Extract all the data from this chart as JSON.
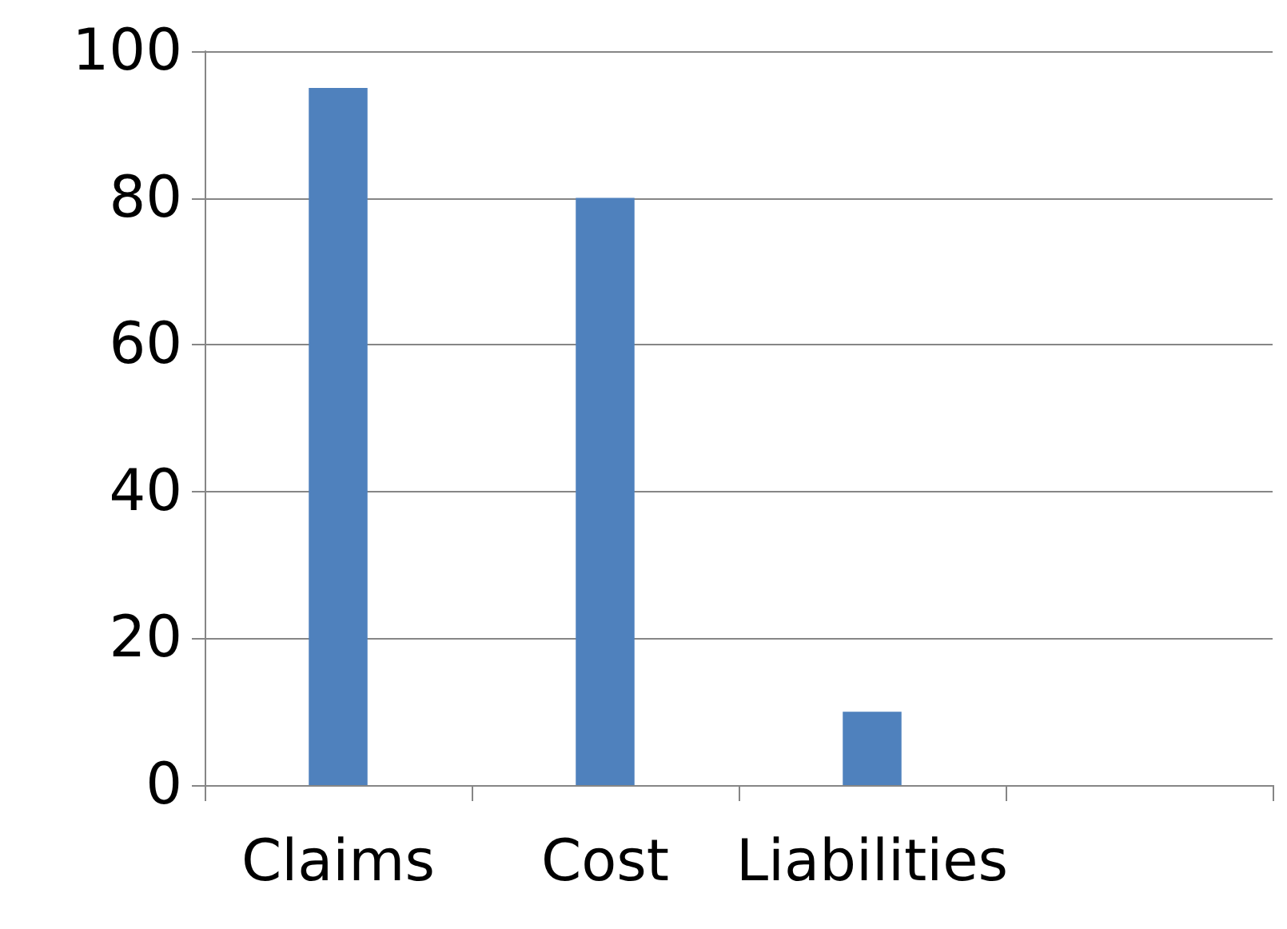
{
  "chart_data": {
    "type": "bar",
    "categories": [
      "Claims",
      "Cost",
      "Liabilities",
      null
    ],
    "values": [
      95,
      80,
      10,
      null
    ],
    "color": "#4f81bd",
    "ylim": [
      0,
      100
    ],
    "yticks": [
      0,
      20,
      40,
      60,
      80,
      100
    ],
    "grid": "y"
  }
}
